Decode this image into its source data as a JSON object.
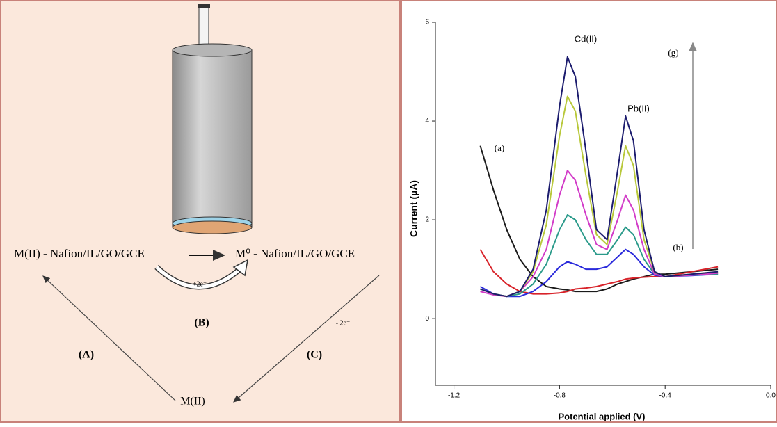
{
  "diagram": {
    "left_label": "M(II) - Nafion/IL/GO/GCE",
    "right_label": "M⁰ - Nafion/IL/GO/GCE",
    "reduction": "+2e⁻",
    "step_b": "(B)",
    "step_a": "(A)",
    "step_c": "(C)",
    "oxidation": "- 2e⁻",
    "bottom_label": "M(II)"
  },
  "chart_data": {
    "type": "line",
    "xlabel": "Potential applied (V)",
    "ylabel": "Current (µA)",
    "xlim": [
      -1.27,
      0
    ],
    "ylim": [
      -1.35,
      6
    ],
    "xticks": [
      -1.2,
      -0.8,
      -0.4,
      {
        "value": 0,
        "label": "0.0"
      }
    ],
    "yticks": [
      0,
      2,
      4,
      6
    ],
    "x": [
      -1.1,
      -1.05,
      -1.0,
      -0.95,
      -0.9,
      -0.85,
      -0.8,
      -0.77,
      -0.74,
      -0.7,
      -0.66,
      -0.62,
      -0.58,
      -0.55,
      -0.52,
      -0.48,
      -0.44,
      -0.4,
      -0.3,
      -0.2
    ],
    "series": [
      {
        "color": "#1a1a1a",
        "values": [
          3.5,
          2.6,
          1.8,
          1.2,
          0.85,
          0.65,
          0.6,
          0.58,
          0.55,
          0.55,
          0.55,
          0.6,
          0.7,
          0.75,
          0.8,
          0.85,
          0.9,
          0.9,
          0.95,
          1.0
        ]
      },
      {
        "color": "#d8232a",
        "values": [
          1.4,
          0.95,
          0.7,
          0.55,
          0.5,
          0.5,
          0.52,
          0.55,
          0.6,
          0.62,
          0.65,
          0.7,
          0.75,
          0.8,
          0.82,
          0.84,
          0.85,
          0.85,
          0.95,
          1.05
        ]
      },
      {
        "color": "#2a2adb",
        "values": [
          0.65,
          0.5,
          0.45,
          0.45,
          0.55,
          0.75,
          1.05,
          1.15,
          1.1,
          1.0,
          1.0,
          1.05,
          1.25,
          1.4,
          1.3,
          1.05,
          0.88,
          0.85,
          0.87,
          0.9
        ]
      },
      {
        "color": "#2a9a8a",
        "values": [
          0.6,
          0.5,
          0.45,
          0.5,
          0.7,
          1.1,
          1.8,
          2.1,
          2.0,
          1.6,
          1.3,
          1.3,
          1.6,
          1.85,
          1.7,
          1.2,
          0.9,
          0.85,
          0.88,
          0.9
        ]
      },
      {
        "color": "#d23cc8",
        "values": [
          0.55,
          0.48,
          0.45,
          0.55,
          0.85,
          1.4,
          2.5,
          3.0,
          2.8,
          2.1,
          1.5,
          1.4,
          2.0,
          2.5,
          2.2,
          1.4,
          0.9,
          0.85,
          0.88,
          0.92
        ]
      },
      {
        "color": "#b8c83a",
        "values": [
          0.6,
          0.5,
          0.45,
          0.55,
          0.95,
          1.9,
          3.7,
          4.5,
          4.2,
          2.9,
          1.7,
          1.5,
          2.6,
          3.5,
          3.1,
          1.6,
          0.95,
          0.85,
          0.9,
          0.95
        ]
      },
      {
        "color": "#1c1c6e",
        "values": [
          0.6,
          0.5,
          0.45,
          0.55,
          1.0,
          2.2,
          4.3,
          5.3,
          4.9,
          3.4,
          1.8,
          1.6,
          3.0,
          4.1,
          3.6,
          1.8,
          0.95,
          0.85,
          0.9,
          0.95
        ]
      }
    ],
    "annotations": [
      "Cd(II)",
      "Pb(II)",
      "(g)",
      "(b)",
      "(a)"
    ]
  }
}
